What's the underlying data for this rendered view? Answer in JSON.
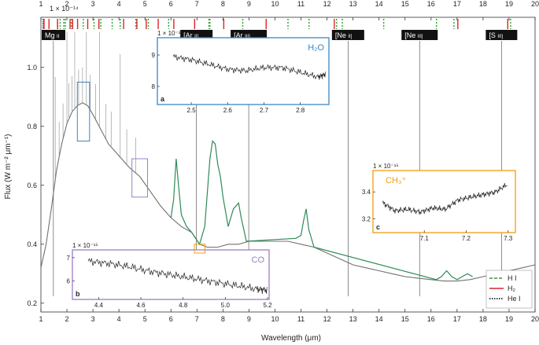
{
  "chart_data": {
    "type": "line",
    "title": "",
    "xlabel": "Wavelength (μm)",
    "ylabel": "Flux (W m⁻² μm⁻¹)",
    "xlim": [
      1,
      20
    ],
    "ylim": [
      0.17,
      1.17
    ],
    "y_exponent": "1 × 10⁻¹⁴",
    "xticks_top": [
      "1",
      "2",
      "3",
      "4",
      "5",
      "6",
      "7",
      "8",
      "9",
      "10",
      "11",
      "12",
      "13",
      "14",
      "15",
      "16",
      "17",
      "18",
      "19",
      "20"
    ],
    "xticks": [
      "1",
      "2",
      "3",
      "4",
      "5",
      "6",
      "7",
      "8",
      "9",
      "10",
      "11",
      "12",
      "13",
      "14",
      "15",
      "16",
      "17",
      "18",
      "19",
      "20"
    ],
    "yticks": [
      "0.2",
      "0.4",
      "0.6",
      "0.8",
      "1.0"
    ],
    "series": [
      {
        "name": "",
        "color": "#707070",
        "x": [
          1.0,
          1.2,
          1.4,
          1.6,
          1.8,
          2.0,
          2.2,
          2.4,
          2.6,
          2.8,
          3.0,
          3.3,
          3.6,
          4.0,
          4.4,
          4.8,
          5.2,
          5.6,
          6.0,
          6.4,
          6.8,
          7.1,
          7.4,
          7.8,
          8.2,
          8.6,
          9.0,
          9.5,
          10.0,
          10.5,
          11.0,
          11.5,
          12.0,
          12.5,
          13.0,
          13.5,
          14.0,
          14.5,
          15.0,
          15.5,
          16.0,
          16.5,
          17.0,
          17.5,
          18.0,
          18.5,
          19.0,
          19.5,
          20.0
        ],
        "y": [
          0.32,
          0.4,
          0.52,
          0.65,
          0.74,
          0.81,
          0.85,
          0.87,
          0.88,
          0.87,
          0.84,
          0.79,
          0.74,
          0.7,
          0.66,
          0.63,
          0.58,
          0.53,
          0.49,
          0.46,
          0.44,
          0.4,
          0.39,
          0.39,
          0.4,
          0.4,
          0.41,
          0.41,
          0.41,
          0.41,
          0.4,
          0.39,
          0.37,
          0.35,
          0.33,
          0.32,
          0.31,
          0.3,
          0.29,
          0.285,
          0.28,
          0.275,
          0.275,
          0.28,
          0.29,
          0.3,
          0.31,
          0.32,
          0.33
        ]
      },
      {
        "name": "",
        "color": "#2e8b57",
        "x": [
          6.0,
          6.1,
          6.2,
          6.3,
          6.4,
          6.6,
          6.8,
          7.1,
          7.3,
          7.5,
          7.6,
          7.7,
          7.8,
          7.9,
          8.0,
          8.2,
          8.4,
          8.6,
          8.7,
          8.9,
          10.8,
          11.0,
          11.1,
          11.2,
          11.3,
          11.5,
          16.2,
          16.4,
          16.6,
          16.8,
          17.0,
          17.2,
          17.4,
          17.6
        ],
        "y": [
          0.49,
          0.55,
          0.69,
          0.59,
          0.5,
          0.46,
          0.44,
          0.4,
          0.46,
          0.69,
          0.75,
          0.74,
          0.67,
          0.63,
          0.56,
          0.46,
          0.52,
          0.54,
          0.49,
          0.41,
          0.42,
          0.43,
          0.48,
          0.52,
          0.45,
          0.39,
          0.28,
          0.29,
          0.31,
          0.29,
          0.28,
          0.29,
          0.3,
          0.29
        ]
      }
    ],
    "line_labels": [
      {
        "label": "Mg",
        "ion": "II",
        "x": 1.48
      },
      {
        "label": "[Ar",
        "ion": "II]",
        "x": 6.98
      },
      {
        "label": "[Ar",
        "ion": "III]",
        "x": 8.99
      },
      {
        "label": "[Ne",
        "ion": "II]",
        "x": 12.81
      },
      {
        "label": "[Ne",
        "ion": "III]",
        "x": 15.56
      },
      {
        "label": "[S",
        "ion": "III]",
        "x": 18.71
      }
    ],
    "line_markers": {
      "HI": [
        1.64,
        1.74,
        1.88,
        1.94,
        2.17,
        2.63,
        3.04,
        3.3,
        3.74,
        4.05,
        4.65,
        5.13,
        5.91,
        7.46,
        7.5,
        8.76,
        10.5,
        11.31,
        12.37,
        12.59,
        14.18,
        16.21,
        16.88,
        19.06
      ],
      "H2": [
        1.12,
        1.31,
        1.64,
        2.12,
        2.22,
        2.41,
        2.8,
        3.23,
        4.18,
        4.69,
        5.05,
        5.51,
        6.11,
        6.91,
        8.03,
        9.66,
        12.28,
        17.03,
        18.95
      ],
      "HeI": [
        1.08
      ]
    },
    "legend": {
      "position": "bottom-right",
      "entries": [
        {
          "name": "H I",
          "color": "#2ca02c",
          "style": "dashed"
        },
        {
          "name": "H₂",
          "color": "#d62728",
          "style": "solid"
        },
        {
          "name": "He I",
          "color": "#000000",
          "style": "dotted"
        }
      ]
    },
    "insets": [
      {
        "label": "a",
        "molecule": "H₂O",
        "color": "#3a87c6",
        "exponent": "1 × 10⁻¹⁵",
        "xlim": [
          2.45,
          2.87
        ],
        "ylim": [
          7.5,
          9.4
        ],
        "xticks": [
          "2.5",
          "2.6",
          "2.7",
          "2.8"
        ],
        "yticks": [
          "8",
          "9"
        ],
        "region": [
          2.4,
          2.87,
          0.75,
          0.95
        ],
        "x": [
          2.45,
          2.5,
          2.55,
          2.6,
          2.65,
          2.7,
          2.75,
          2.8,
          2.85,
          2.87
        ],
        "y": [
          8.95,
          8.85,
          8.7,
          8.55,
          8.5,
          8.6,
          8.6,
          8.45,
          8.3,
          8.4
        ]
      },
      {
        "label": "b",
        "molecule": "CO",
        "color": "#9b7fc5",
        "exponent": "1 × 10⁻¹⁵",
        "xlim": [
          4.35,
          5.2
        ],
        "ylim": [
          5.3,
          7.2
        ],
        "xticks": [
          "4.4",
          "4.6",
          "4.8",
          "5.0",
          "5.2"
        ],
        "yticks": [
          "6",
          "7"
        ],
        "region": [
          4.5,
          5.1,
          0.56,
          0.69
        ],
        "x": [
          4.35,
          4.45,
          4.55,
          4.65,
          4.75,
          4.85,
          4.95,
          5.05,
          5.15,
          5.2
        ],
        "y": [
          6.85,
          6.75,
          6.6,
          6.4,
          6.25,
          6.1,
          5.95,
          5.8,
          5.65,
          5.6
        ]
      },
      {
        "label": "c",
        "molecule": "CH₃⁺",
        "color": "#f39c12",
        "exponent": "1 × 10⁻¹⁵",
        "xlim": [
          7.0,
          7.31
        ],
        "ylim": [
          3.12,
          3.53
        ],
        "xticks": [
          "7.1",
          "7.2",
          "7.3"
        ],
        "yticks": [
          "3.2",
          "3.4"
        ],
        "region": [
          6.9,
          7.31,
          0.37,
          0.4
        ],
        "x": [
          7.0,
          7.03,
          7.06,
          7.09,
          7.12,
          7.15,
          7.18,
          7.21,
          7.24,
          7.27,
          7.3
        ],
        "y": [
          3.32,
          3.26,
          3.27,
          3.25,
          3.28,
          3.27,
          3.34,
          3.36,
          3.38,
          3.4,
          3.46
        ]
      }
    ]
  }
}
